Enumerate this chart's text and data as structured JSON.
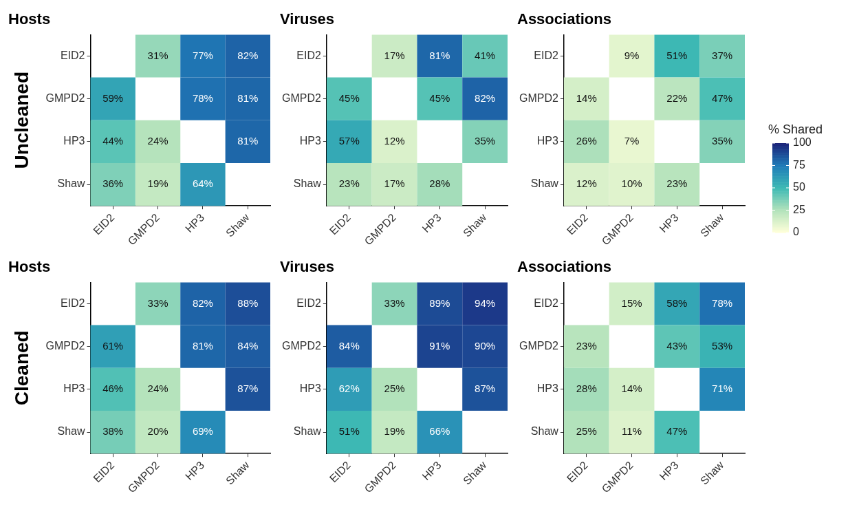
{
  "chart_data": [
    {
      "type": "heatmap",
      "title": "Hosts",
      "ylabel": "Uncleaned",
      "categories": [
        "EID2",
        "GMPD2",
        "HP3",
        "Shaw"
      ],
      "y_categories": [
        "EID2",
        "GMPD2",
        "HP3",
        "Shaw"
      ],
      "cells": [
        [
          null,
          31,
          77,
          82
        ],
        [
          59,
          null,
          78,
          81
        ],
        [
          44,
          24,
          null,
          81
        ],
        [
          36,
          19,
          64,
          null
        ]
      ],
      "cell_labels": [
        [
          null,
          "31%",
          "77%",
          "82%"
        ],
        [
          "59%",
          null,
          "78%",
          "81%"
        ],
        [
          "44%",
          "24%",
          null,
          "81%"
        ],
        [
          "36%",
          "19%",
          "64%",
          null
        ]
      ]
    },
    {
      "type": "heatmap",
      "title": "Viruses",
      "categories": [
        "EID2",
        "GMPD2",
        "HP3",
        "Shaw"
      ],
      "y_categories": [
        "EID2",
        "GMPD2",
        "HP3",
        "Shaw"
      ],
      "cells": [
        [
          null,
          17,
          81,
          41
        ],
        [
          45,
          null,
          45,
          82
        ],
        [
          57,
          12,
          null,
          35
        ],
        [
          23,
          17,
          28,
          null
        ]
      ],
      "cell_labels": [
        [
          null,
          "17%",
          "81%",
          "41%"
        ],
        [
          "45%",
          null,
          "45%",
          "82%"
        ],
        [
          "57%",
          "12%",
          null,
          "35%"
        ],
        [
          "23%",
          "17%",
          "28%",
          null
        ]
      ]
    },
    {
      "type": "heatmap",
      "title": "Associations",
      "clabel": "% Shared",
      "clim": [
        0,
        100
      ],
      "cticks": [
        0,
        25,
        50,
        75,
        100
      ],
      "categories": [
        "EID2",
        "GMPD2",
        "HP3",
        "Shaw"
      ],
      "y_categories": [
        "EID2",
        "GMPD2",
        "HP3",
        "Shaw"
      ],
      "cells": [
        [
          null,
          9,
          51,
          37
        ],
        [
          14,
          null,
          22,
          47
        ],
        [
          26,
          7,
          null,
          35
        ],
        [
          12,
          10,
          23,
          null
        ]
      ],
      "cell_labels": [
        [
          null,
          "9%",
          "51%",
          "37%"
        ],
        [
          "14%",
          null,
          "22%",
          "47%"
        ],
        [
          "26%",
          "7%",
          null,
          "35%"
        ],
        [
          "12%",
          "10%",
          "23%",
          null
        ]
      ]
    },
    {
      "type": "heatmap",
      "title": "Hosts",
      "ylabel": "Cleaned",
      "categories": [
        "EID2",
        "GMPD2",
        "HP3",
        "Shaw"
      ],
      "y_categories": [
        "EID2",
        "GMPD2",
        "HP3",
        "Shaw"
      ],
      "cells": [
        [
          null,
          33,
          82,
          88
        ],
        [
          61,
          null,
          81,
          84
        ],
        [
          46,
          24,
          null,
          87
        ],
        [
          38,
          20,
          69,
          null
        ]
      ],
      "cell_labels": [
        [
          null,
          "33%",
          "82%",
          "88%"
        ],
        [
          "61%",
          null,
          "81%",
          "84%"
        ],
        [
          "46%",
          "24%",
          null,
          "87%"
        ],
        [
          "38%",
          "20%",
          "69%",
          null
        ]
      ]
    },
    {
      "type": "heatmap",
      "title": "Viruses",
      "categories": [
        "EID2",
        "GMPD2",
        "HP3",
        "Shaw"
      ],
      "y_categories": [
        "EID2",
        "GMPD2",
        "HP3",
        "Shaw"
      ],
      "cells": [
        [
          null,
          33,
          89,
          94
        ],
        [
          84,
          null,
          91,
          90
        ],
        [
          62,
          25,
          null,
          87
        ],
        [
          51,
          19,
          66,
          null
        ]
      ],
      "cell_labels": [
        [
          null,
          "33%",
          "89%",
          "94%"
        ],
        [
          "84%",
          null,
          "91%",
          "90%"
        ],
        [
          "62%",
          "25%",
          null,
          "87%"
        ],
        [
          "51%",
          "19%",
          "66%",
          null
        ]
      ]
    },
    {
      "type": "heatmap",
      "title": "Associations",
      "categories": [
        "EID2",
        "GMPD2",
        "HP3",
        "Shaw"
      ],
      "y_categories": [
        "EID2",
        "GMPD2",
        "HP3",
        "Shaw"
      ],
      "cells": [
        [
          null,
          15,
          58,
          78
        ],
        [
          23,
          null,
          43,
          53
        ],
        [
          28,
          14,
          null,
          71
        ],
        [
          25,
          11,
          47,
          null
        ]
      ],
      "cell_labels": [
        [
          null,
          "15%",
          "58%",
          "78%"
        ],
        [
          "23%",
          null,
          "43%",
          "53%"
        ],
        [
          "28%",
          "14%",
          null,
          "71%"
        ],
        [
          "25%",
          "11%",
          "47%",
          null
        ]
      ]
    }
  ]
}
